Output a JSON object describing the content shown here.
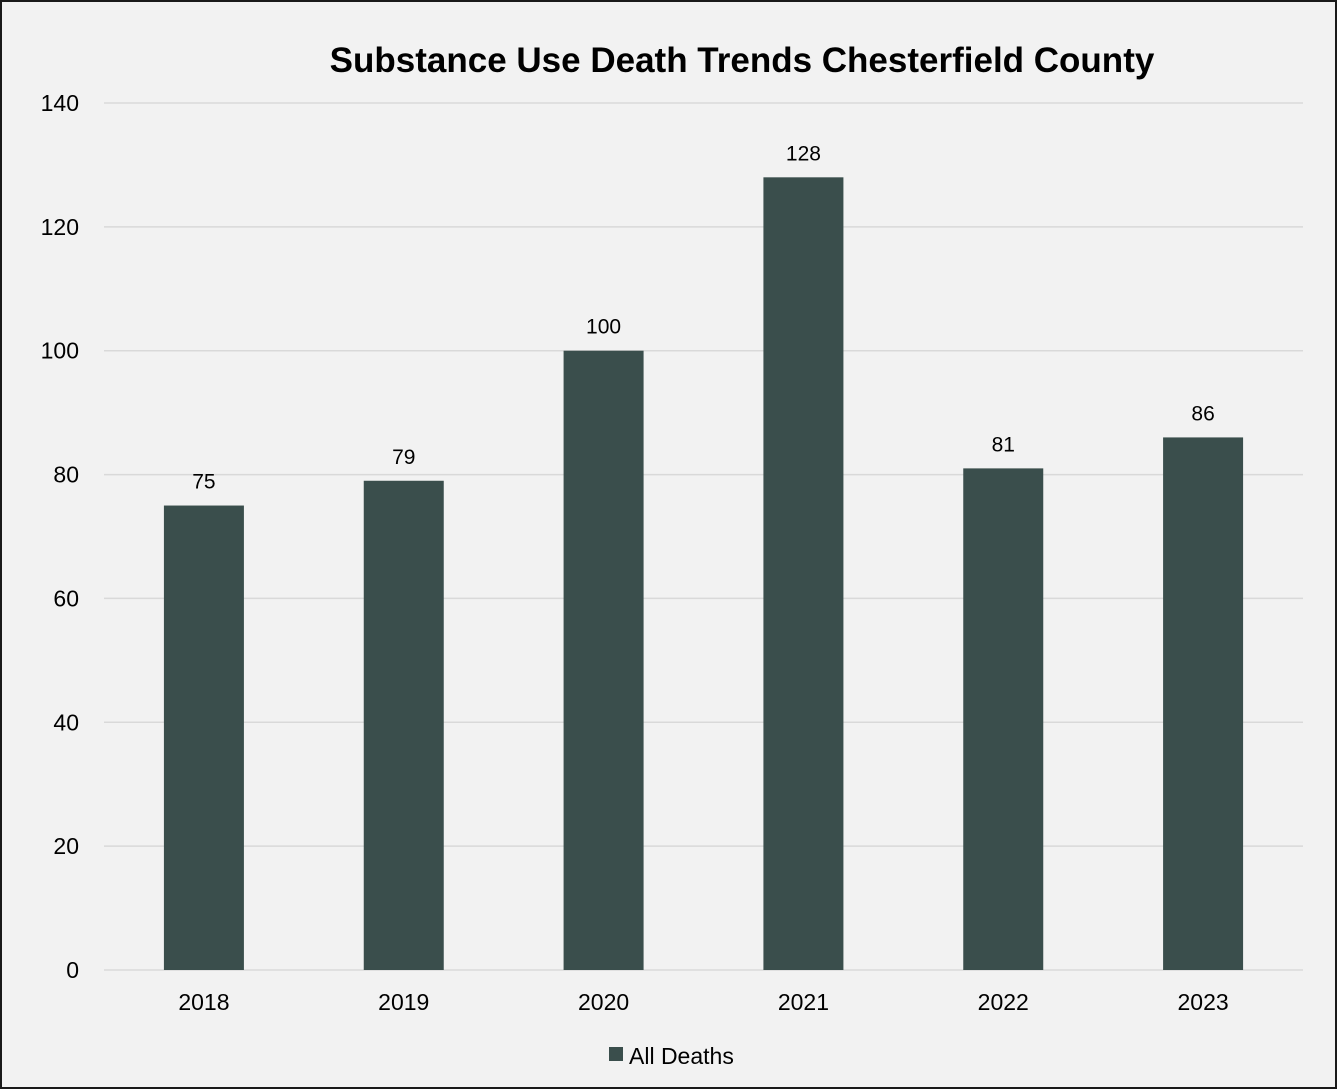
{
  "chart_data": {
    "type": "bar",
    "title": "Substance Use Death Trends Chesterfield County",
    "xlabel": "",
    "ylabel": "",
    "categories": [
      "2018",
      "2019",
      "2020",
      "2021",
      "2022",
      "2023"
    ],
    "series": [
      {
        "name": "All Deaths",
        "values": [
          75,
          79,
          100,
          128,
          81,
          86
        ],
        "color": "#3a4e4c"
      }
    ],
    "ylim": [
      0,
      140
    ],
    "yticks": [
      0,
      20,
      40,
      60,
      80,
      100,
      120,
      140
    ],
    "grid": true,
    "gridline_color": "#d9d9d9",
    "background_color": "#f2f2f2",
    "legend_position": "bottom"
  }
}
